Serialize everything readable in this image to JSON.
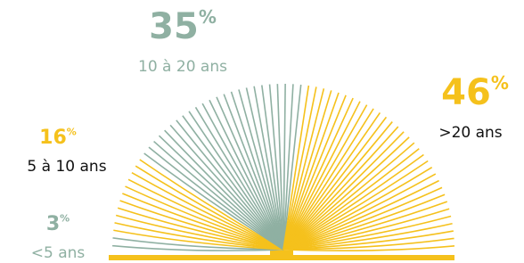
{
  "chart_data": {
    "type": "pie",
    "categories": [
      "<5 ans",
      "5 à 10 ans",
      "10 à 20 ans",
      ">20 ans"
    ],
    "values": [
      3,
      16,
      35,
      46
    ],
    "value_labels": [
      "3%",
      "16%",
      "35%",
      "46%"
    ],
    "colors": [
      "#8fb0a2",
      "#f5c11c",
      "#8fb0a2",
      "#f5c11c"
    ]
  }
}
